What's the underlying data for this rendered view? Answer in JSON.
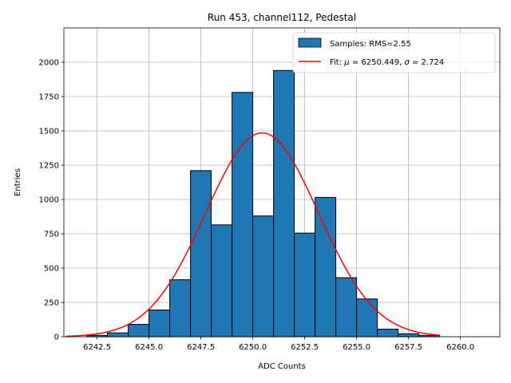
{
  "chart_data": {
    "type": "bar",
    "title": "Run 453, channel112, Pedestal",
    "xlabel": "ADC Counts",
    "ylabel": "Entries",
    "xlim": [
      6240.9,
      6261.9
    ],
    "ylim": [
      0,
      2250
    ],
    "grid": true,
    "legend_position": "top-right",
    "colors": {
      "bars": "#1f77b4",
      "bar_edge": "#000000",
      "fit": "#ff0000",
      "grid": "#b0b0b0"
    },
    "x_ticks": [
      6242.5,
      6245.0,
      6247.5,
      6250.0,
      6252.5,
      6255.0,
      6257.5,
      6260.0
    ],
    "x_tick_labels": [
      "6242.5",
      "6245.0",
      "6247.5",
      "6250.0",
      "6252.5",
      "6255.0",
      "6257.5",
      "6260.0"
    ],
    "y_ticks": [
      0,
      250,
      500,
      750,
      1000,
      1250,
      1500,
      1750,
      2000
    ],
    "y_tick_labels": [
      "0",
      "250",
      "500",
      "750",
      "1000",
      "1250",
      "1500",
      "1750",
      "2000"
    ],
    "histogram": {
      "name": "Samples: RMS=2.55",
      "bins": [
        {
          "x0": 6242.0,
          "x1": 6243.0,
          "count": 10
        },
        {
          "x0": 6243.0,
          "x1": 6244.0,
          "count": 28
        },
        {
          "x0": 6244.0,
          "x1": 6245.0,
          "count": 90
        },
        {
          "x0": 6245.0,
          "x1": 6246.0,
          "count": 195
        },
        {
          "x0": 6246.0,
          "x1": 6247.0,
          "count": 415
        },
        {
          "x0": 6247.0,
          "x1": 6248.0,
          "count": 1210
        },
        {
          "x0": 6248.0,
          "x1": 6249.0,
          "count": 815
        },
        {
          "x0": 6249.0,
          "x1": 6250.0,
          "count": 1780
        },
        {
          "x0": 6250.0,
          "x1": 6251.0,
          "count": 880
        },
        {
          "x0": 6251.0,
          "x1": 6252.0,
          "count": 1940
        },
        {
          "x0": 6252.0,
          "x1": 6253.0,
          "count": 755
        },
        {
          "x0": 6253.0,
          "x1": 6254.0,
          "count": 1015
        },
        {
          "x0": 6254.0,
          "x1": 6255.0,
          "count": 430
        },
        {
          "x0": 6255.0,
          "x1": 6256.0,
          "count": 275
        },
        {
          "x0": 6256.0,
          "x1": 6257.0,
          "count": 55
        },
        {
          "x0": 6257.0,
          "x1": 6258.0,
          "count": 22
        },
        {
          "x0": 6258.0,
          "x1": 6259.0,
          "count": 10
        }
      ]
    },
    "fit": {
      "legend_prefix": "Fit: ",
      "mu_symbol": "μ",
      "mu_text": " = 6250.449, ",
      "sigma_symbol": "σ",
      "sigma_text": " = 2.724",
      "mu": 6250.449,
      "sigma": 2.724,
      "amplitude": 1485,
      "x_range": [
        6241.0,
        6259.0
      ]
    }
  }
}
